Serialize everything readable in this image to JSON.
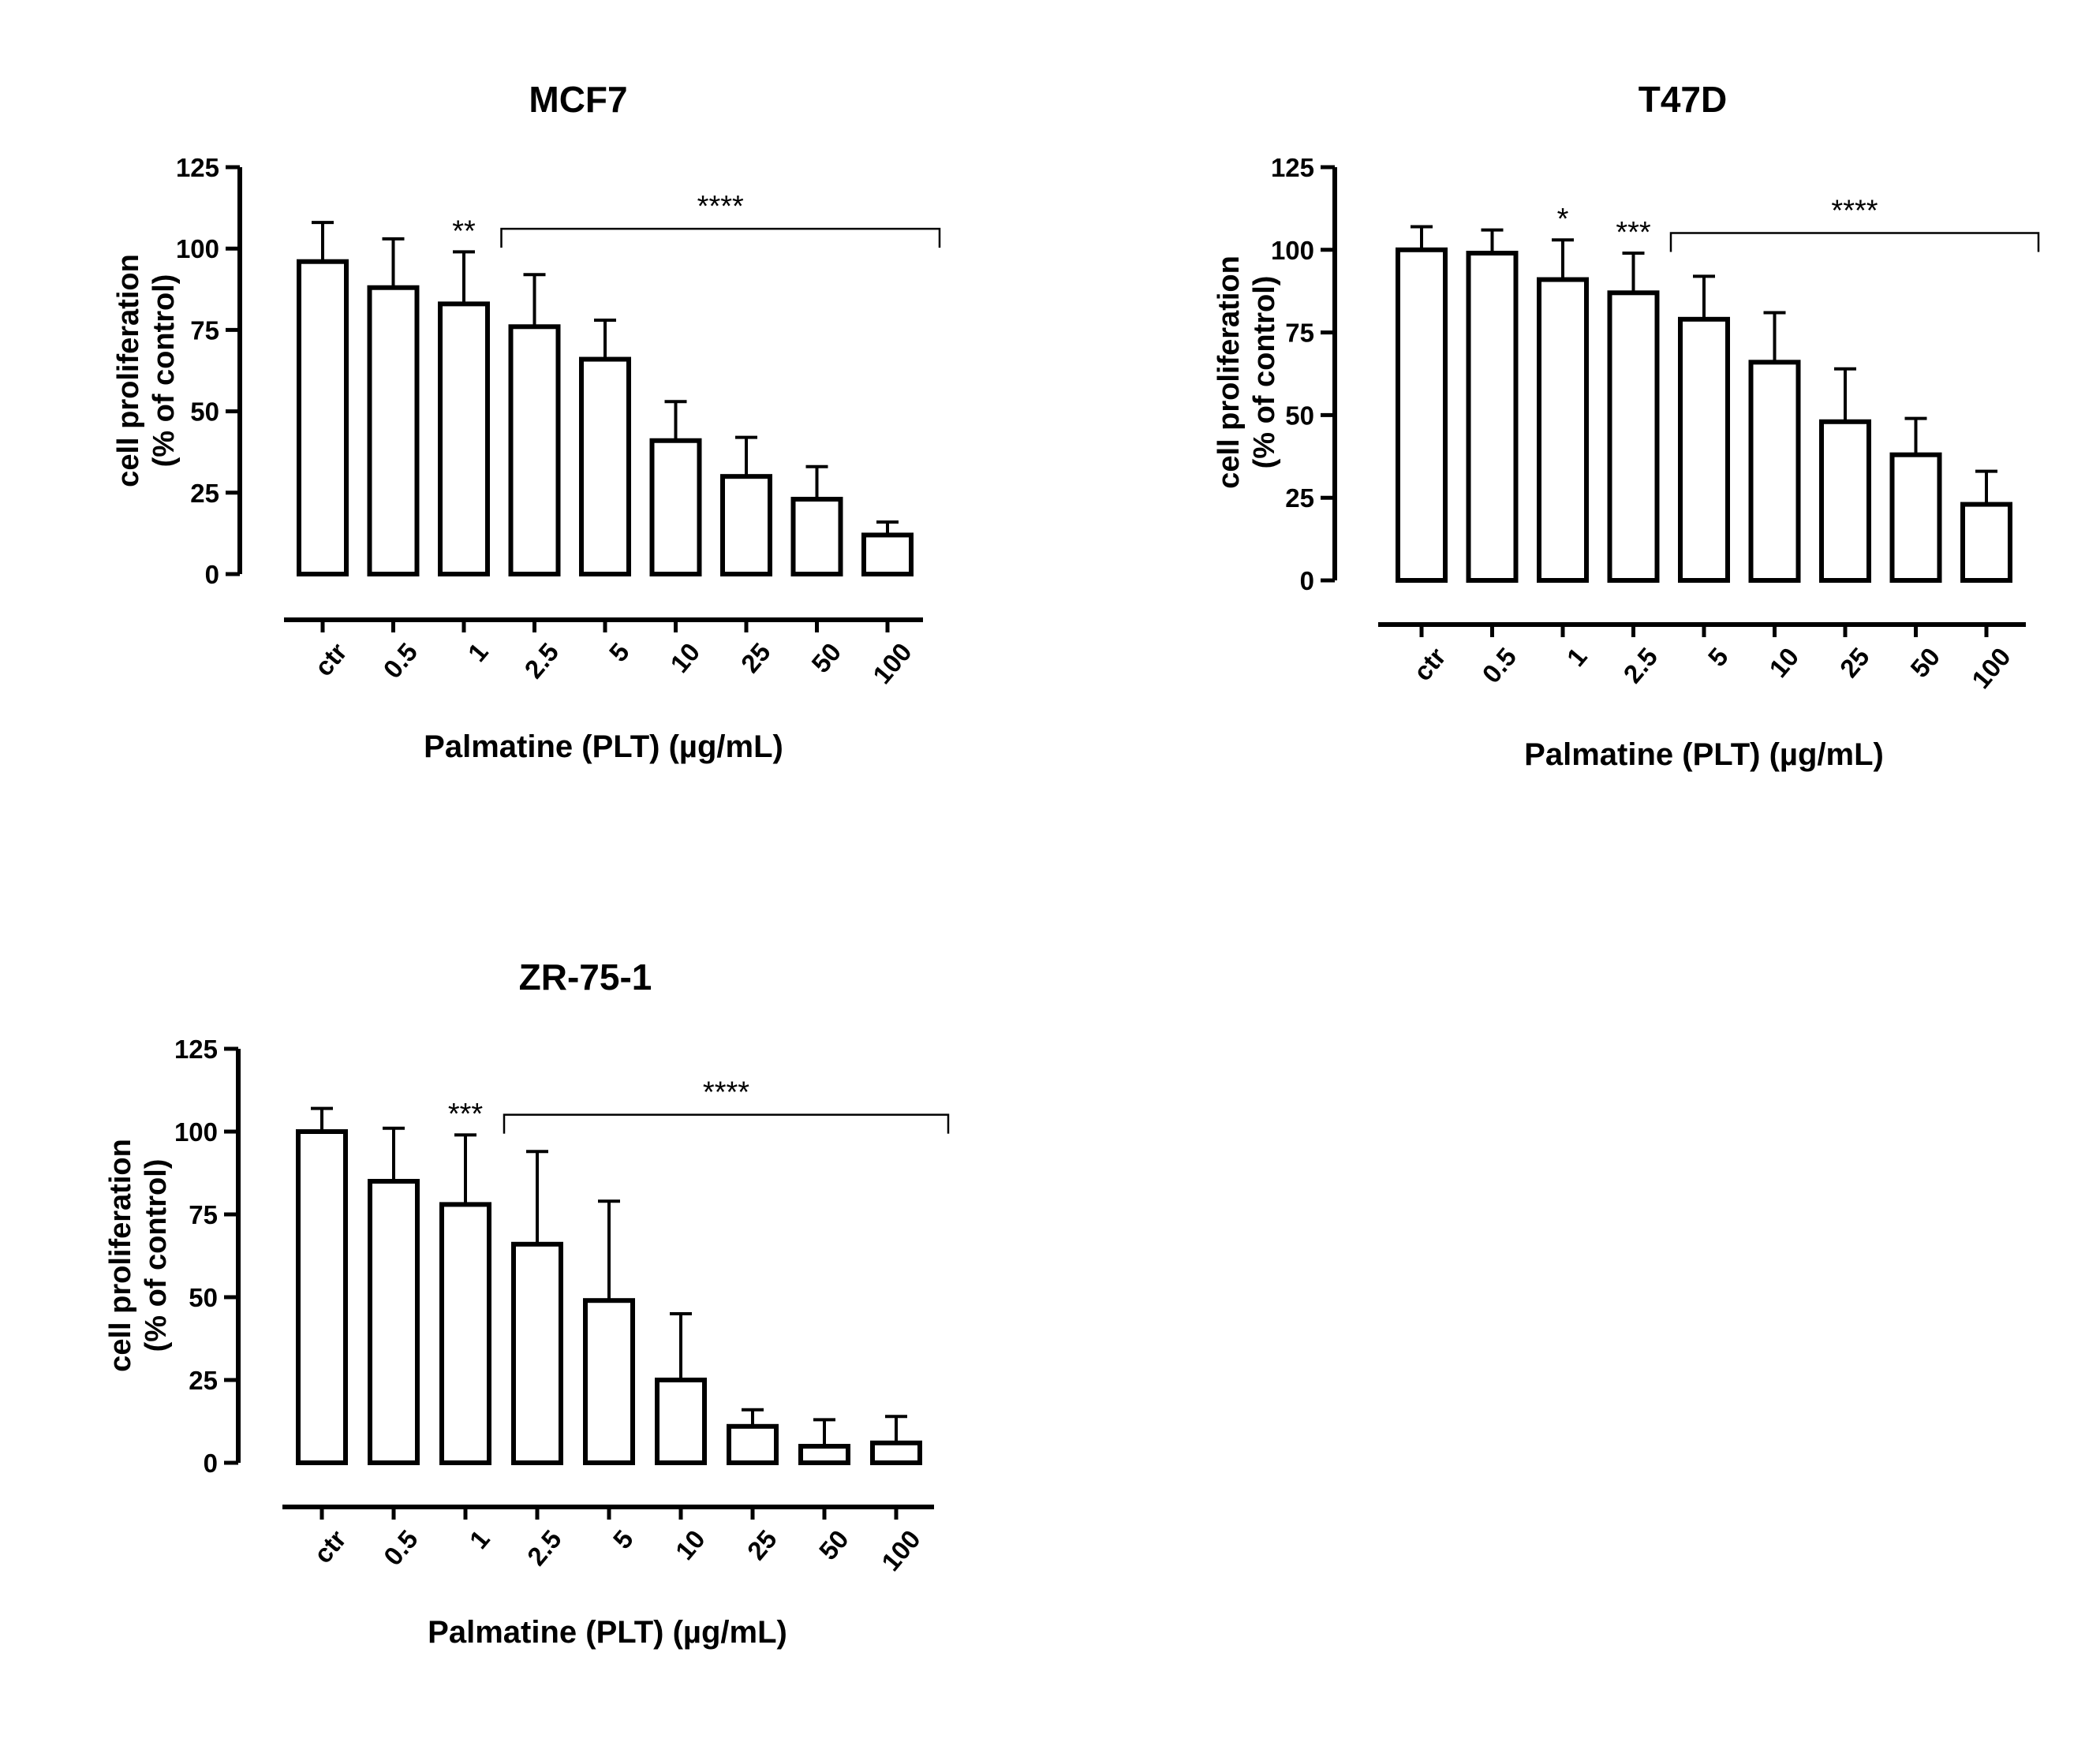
{
  "chart_data": [
    {
      "type": "bar",
      "title": "MCF7",
      "ylabel_line1": "cell proliferation",
      "ylabel_line2": "(% of control)",
      "xlabel": "Palmatine (PLT) (µg/mL)",
      "categories": [
        "ctr",
        "0.5",
        "1",
        "2.5",
        "5",
        "10",
        "25",
        "50",
        "100"
      ],
      "values": [
        96,
        88,
        83,
        76,
        66,
        41,
        30,
        23,
        12
      ],
      "errors": [
        12,
        15,
        16,
        16,
        12,
        12,
        12,
        10,
        4
      ],
      "ylim": [
        0,
        125
      ],
      "yticks": [
        0,
        25,
        50,
        75,
        100,
        125
      ],
      "significance": [
        {
          "category": "1",
          "label": "**"
        }
      ],
      "bracket": {
        "from": "2.5",
        "to": "100",
        "label": "****"
      }
    },
    {
      "type": "bar",
      "title": "T47D",
      "ylabel_line1": "cell proliferation",
      "ylabel_line2": "(% of control)",
      "xlabel": "Palmatine (PLT) (µg/mL)",
      "categories": [
        "ctr",
        "0.5",
        "1",
        "2.5",
        "5",
        "10",
        "25",
        "50",
        "100"
      ],
      "values": [
        100,
        99,
        91,
        87,
        79,
        66,
        48,
        38,
        23
      ],
      "errors": [
        7,
        7,
        12,
        12,
        13,
        15,
        16,
        11,
        10
      ],
      "ylim": [
        0,
        125
      ],
      "yticks": [
        0,
        25,
        50,
        75,
        100,
        125
      ],
      "significance": [
        {
          "category": "1",
          "label": "*"
        },
        {
          "category": "2.5",
          "label": "***"
        }
      ],
      "bracket": {
        "from": "5",
        "to": "100",
        "label": "****"
      }
    },
    {
      "type": "bar",
      "title": "ZR-75-1",
      "ylabel_line1": "cell proliferation",
      "ylabel_line2": "(% of control)",
      "xlabel": "Palmatine (PLT) (µg/mL)",
      "categories": [
        "ctr",
        "0.5",
        "1",
        "2.5",
        "5",
        "10",
        "25",
        "50",
        "100"
      ],
      "values": [
        100,
        85,
        78,
        66,
        49,
        25,
        11,
        5,
        6
      ],
      "errors": [
        7,
        16,
        21,
        28,
        30,
        20,
        5,
        8,
        8
      ],
      "ylim": [
        0,
        125
      ],
      "yticks": [
        0,
        25,
        50,
        75,
        100,
        125
      ],
      "significance": [
        {
          "category": "1",
          "label": "***"
        }
      ],
      "bracket": {
        "from": "2.5",
        "to": "100",
        "label": "****"
      }
    }
  ]
}
